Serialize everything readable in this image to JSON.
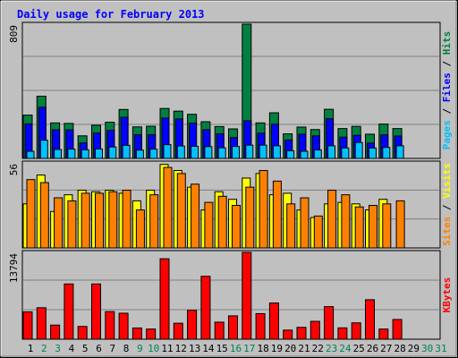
{
  "chart_data": {
    "type": "bar",
    "title": "Daily usage for February 2013",
    "days": [
      "1",
      "2",
      "3",
      "4",
      "5",
      "6",
      "7",
      "8",
      "9",
      "10",
      "11",
      "12",
      "13",
      "14",
      "15",
      "16",
      "17",
      "18",
      "19",
      "20",
      "21",
      "22",
      "23",
      "24",
      "25",
      "26",
      "27",
      "28",
      "29",
      "30",
      "31"
    ],
    "weekend_days": [
      "2",
      "3",
      "9",
      "10",
      "16",
      "17",
      "23",
      "24",
      "30",
      "31"
    ],
    "panels": [
      {
        "id": "hits",
        "max_label": "809",
        "ylim": [
          0,
          809
        ],
        "axis_labels": [
          {
            "text": "Pages",
            "color": "#00C0FF"
          },
          {
            "text": " / ",
            "color": "#000000"
          },
          {
            "text": "Files",
            "color": "#0000FF"
          },
          {
            "text": " / ",
            "color": "#000000"
          },
          {
            "text": "Hits",
            "color": "#008040"
          }
        ],
        "series": [
          {
            "name": "Hits",
            "color": "#008040",
            "values": [
              261,
              375,
              214,
              211,
              136,
              200,
              218,
              295,
              190,
              194,
              301,
              285,
              266,
              221,
              192,
              178,
              809,
              214,
              275,
              148,
              189,
              174,
              296,
              180,
              193,
              146,
              207,
              180
            ]
          },
          {
            "name": "Files",
            "color": "#0000FF",
            "values": [
              208,
              308,
              172,
              172,
              93,
              153,
              169,
              248,
              143,
              143,
              243,
              238,
              213,
              173,
              148,
              126,
              227,
              152,
              206,
              111,
              146,
              136,
              239,
              128,
              139,
              92,
              142,
              135
            ]
          },
          {
            "name": "Pages",
            "color": "#00C0FF",
            "values": [
              43,
              110,
              54,
              56,
              52,
              57,
              69,
              79,
              50,
              56,
              83,
              75,
              73,
              71,
              64,
              72,
              80,
              80,
              76,
              46,
              43,
              51,
              76,
              63,
              96,
              63,
              66,
              76
            ]
          }
        ]
      },
      {
        "id": "visits",
        "max_label": "56",
        "ylim": [
          0,
          56
        ],
        "axis_labels": [
          {
            "text": "Sites",
            "color": "#FF8000"
          },
          {
            "text": " / ",
            "color": "#000000"
          },
          {
            "text": "Visits",
            "color": "#FFFF00"
          }
        ],
        "series": [
          {
            "name": "Visits",
            "color": "#FFFF00",
            "values": [
              29,
              48,
              24,
              35,
              38,
              37,
              38,
              36,
              31,
              38,
              55,
              51,
              40,
              25,
              37,
              32,
              46,
              49,
              35,
              36,
              25,
              20,
              29,
              30,
              29,
              25,
              32,
              null
            ]
          },
          {
            "name": "Sites",
            "color": "#FF8000",
            "values": [
              45,
              43,
              33,
              31,
              36,
              36,
              37,
              38,
              25,
              35,
              53,
              49,
              42,
              30,
              34,
              28,
              40,
              51,
              44,
              29,
              33,
              21,
              38,
              35,
              27,
              28,
              29,
              31
            ]
          }
        ]
      },
      {
        "id": "kbytes",
        "max_label": "13794",
        "ylim": [
          0,
          13794
        ],
        "axis_labels": [
          {
            "text": "KBytes",
            "color": "#FF0000"
          }
        ],
        "series": [
          {
            "name": "KBytes",
            "color": "#FF0000",
            "values": [
              4350,
              5001,
              2242,
              8780,
              2027,
              8780,
              4390,
              4130,
              1782,
              1617,
              12786,
              2537,
              4584,
              10000,
              2711,
              3710,
              13794,
              4062,
              5757,
              1444,
              1885,
              2841,
              5173,
              1800,
              2600,
              6275,
              1617,
              3135
            ]
          }
        ]
      }
    ],
    "colors": {
      "background": "#C0C0C0",
      "title": "#0000FF",
      "grid": "#808080",
      "weekday_label": "#000000",
      "weekend_label": "#00805C"
    }
  }
}
